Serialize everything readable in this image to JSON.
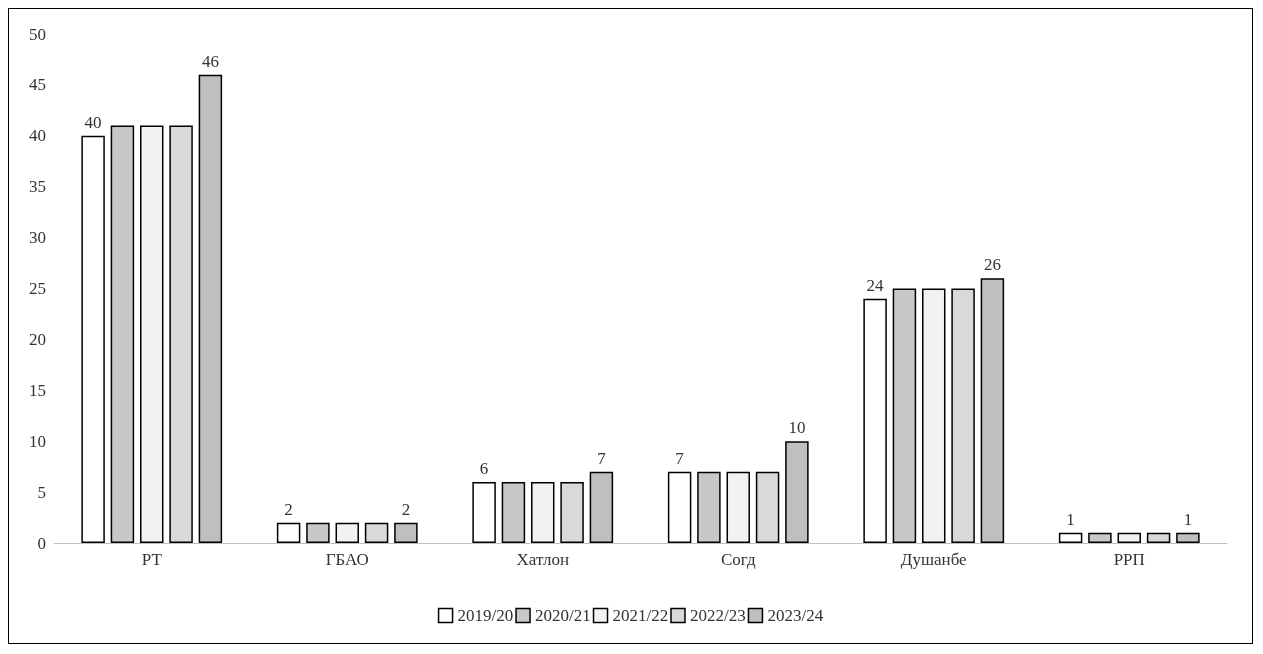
{
  "chart_data": {
    "type": "bar",
    "categories": [
      "РТ",
      "ГБАО",
      "Хатлон",
      "Согд",
      "Душанбе",
      "РРП"
    ],
    "series": [
      {
        "name": "2019/20",
        "color": "#ffffff",
        "values": [
          40,
          2,
          6,
          7,
          24,
          1
        ],
        "value_labels": [
          "40",
          "2",
          "6",
          "7",
          "24",
          "1"
        ]
      },
      {
        "name": "2020/21",
        "color": "#c8c8c8",
        "values": [
          41,
          2,
          6,
          7,
          25,
          1
        ],
        "value_labels": [
          null,
          null,
          null,
          null,
          null,
          null
        ]
      },
      {
        "name": "2021/22",
        "color": "#f2f2f2",
        "values": [
          41,
          2,
          6,
          7,
          25,
          1
        ],
        "value_labels": [
          null,
          null,
          null,
          null,
          null,
          null
        ]
      },
      {
        "name": "2022/23",
        "color": "#d9d9d9",
        "values": [
          41,
          2,
          6,
          7,
          25,
          1
        ],
        "value_labels": [
          null,
          null,
          null,
          null,
          null,
          null
        ]
      },
      {
        "name": "2023/24",
        "color": "#bfbfbf",
        "values": [
          46,
          2,
          7,
          10,
          26,
          1
        ],
        "value_labels": [
          "46",
          "2",
          "7",
          "10",
          "26",
          "1"
        ]
      }
    ],
    "ylim": [
      0,
      50
    ],
    "yticks": [
      0,
      5,
      10,
      15,
      20,
      25,
      30,
      35,
      40,
      45,
      50
    ],
    "grid": false,
    "legend": "bottom"
  }
}
